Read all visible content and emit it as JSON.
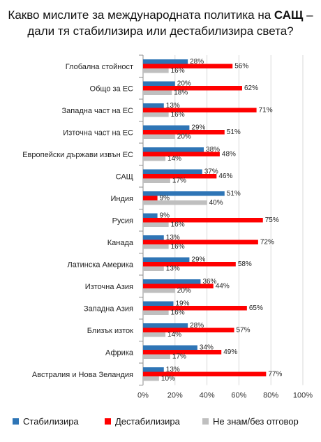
{
  "title": {
    "line1_pre": "Какво мислите за международната политика на ",
    "line1_bold": "САЩ",
    "line1_post": " –",
    "line2": "дали тя стабилизира или дестабилизира света?"
  },
  "chart_data": {
    "type": "bar",
    "orientation": "horizontal",
    "categories": [
      "Глобална стойност",
      "Общо за ЕС",
      "Западна част на ЕС",
      "Източна част на ЕС",
      "Европейски държави извън ЕС",
      "САЩ",
      "Индия",
      "Русия",
      "Канада",
      "Латинска Америка",
      "Източна Азия",
      "Западна Азия",
      "Близък изток",
      "Африка",
      "Австралия и Нова Зеландия"
    ],
    "series": [
      {
        "name": "Стабилизира",
        "color": "#2E75B6",
        "values": [
          28,
          20,
          13,
          29,
          38,
          37,
          51,
          9,
          13,
          29,
          36,
          19,
          28,
          34,
          13
        ]
      },
      {
        "name": "Дестабилизира",
        "color": "#FF0000",
        "values": [
          56,
          62,
          71,
          51,
          48,
          46,
          9,
          75,
          72,
          58,
          44,
          65,
          57,
          49,
          77
        ]
      },
      {
        "name": "Не знам/без отговор",
        "color": "#BFBFBF",
        "values": [
          16,
          18,
          16,
          20,
          14,
          17,
          40,
          16,
          16,
          13,
          20,
          16,
          14,
          17,
          10
        ]
      }
    ],
    "xlim": [
      0,
      100
    ],
    "xticks": [
      "0%",
      "20%",
      "40%",
      "60%",
      "80%",
      "100%"
    ],
    "value_suffix": "%",
    "grid": true,
    "legend": "bottom"
  }
}
